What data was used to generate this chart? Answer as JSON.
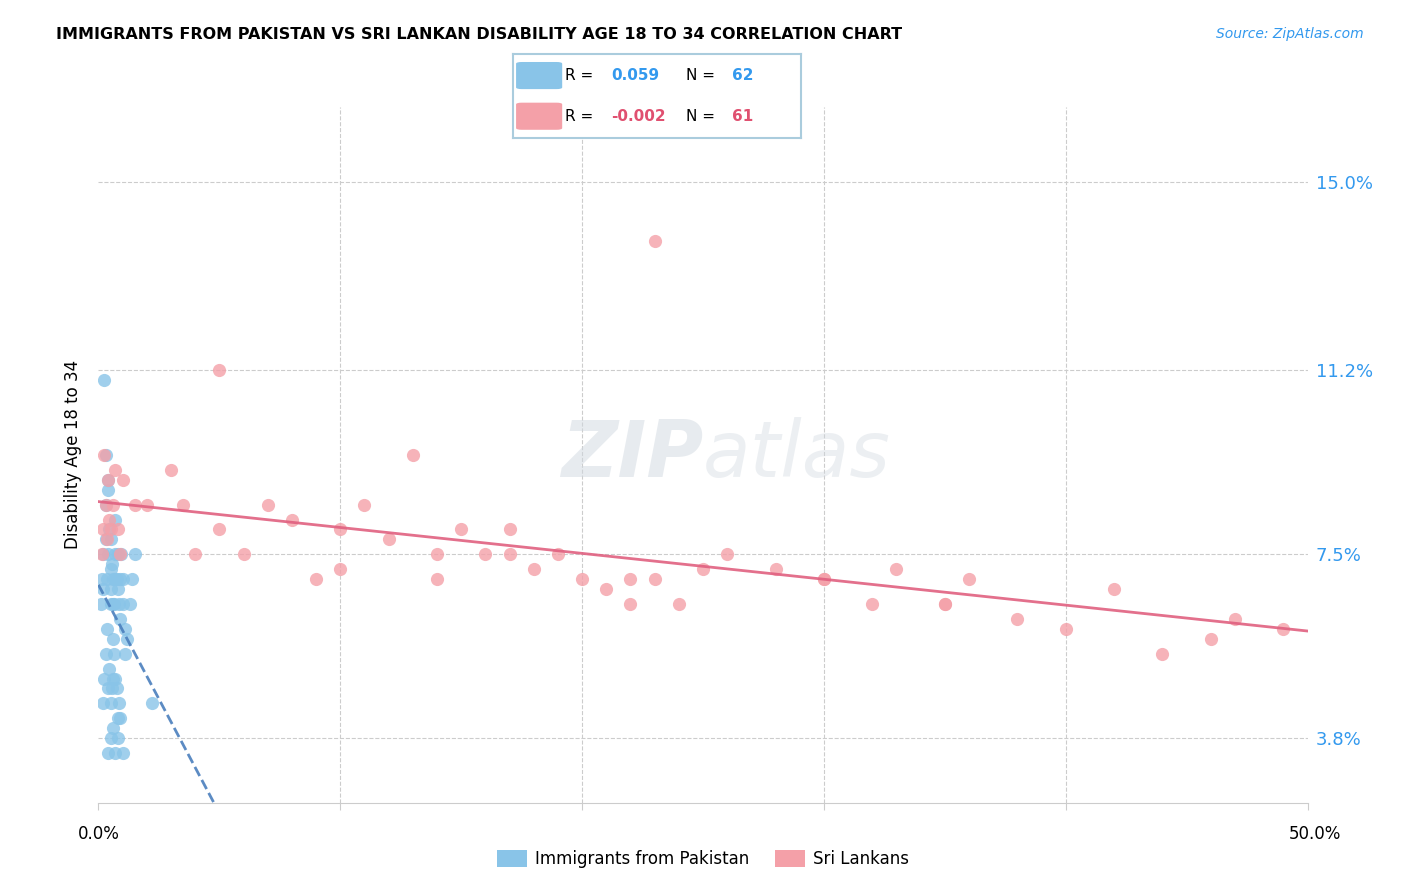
{
  "title": "IMMIGRANTS FROM PAKISTAN VS SRI LANKAN DISABILITY AGE 18 TO 34 CORRELATION CHART",
  "source": "Source: ZipAtlas.com",
  "ylabel": "Disability Age 18 to 34",
  "ytick_labels": [
    "3.8%",
    "7.5%",
    "11.2%",
    "15.0%"
  ],
  "ytick_values": [
    3.8,
    7.5,
    11.2,
    15.0
  ],
  "xlim": [
    0.0,
    50.0
  ],
  "ylim": [
    2.5,
    16.5
  ],
  "blue_color": "#89C4E8",
  "pink_color": "#F4A0A8",
  "blue_line_color": "#4A7FBD",
  "pink_line_color": "#E06080",
  "watermark": "ZIPatlas",
  "background_color": "#ffffff",
  "pakistan_x": [
    0.1,
    0.15,
    0.2,
    0.2,
    0.25,
    0.3,
    0.3,
    0.3,
    0.35,
    0.4,
    0.4,
    0.4,
    0.45,
    0.5,
    0.5,
    0.5,
    0.5,
    0.55,
    0.6,
    0.6,
    0.6,
    0.65,
    0.7,
    0.7,
    0.7,
    0.75,
    0.8,
    0.8,
    0.85,
    0.9,
    0.9,
    0.95,
    1.0,
    1.0,
    1.1,
    1.1,
    1.2,
    1.3,
    1.4,
    1.5,
    0.2,
    0.25,
    0.3,
    0.35,
    0.4,
    0.45,
    0.5,
    0.55,
    0.6,
    0.65,
    0.7,
    0.75,
    0.8,
    0.85,
    2.2,
    0.4,
    0.5,
    0.6,
    0.7,
    0.8,
    0.9,
    1.0
  ],
  "pakistan_y": [
    6.5,
    7.0,
    6.8,
    7.5,
    11.0,
    9.5,
    7.8,
    8.5,
    7.0,
    7.5,
    8.8,
    9.0,
    8.0,
    7.2,
    7.8,
    6.5,
    6.8,
    7.3,
    7.0,
    6.5,
    5.8,
    6.5,
    7.0,
    8.2,
    7.5,
    7.0,
    6.8,
    7.5,
    6.5,
    6.2,
    7.0,
    7.5,
    6.5,
    7.0,
    5.5,
    6.0,
    5.8,
    6.5,
    7.0,
    7.5,
    4.5,
    5.0,
    5.5,
    6.0,
    4.8,
    5.2,
    4.5,
    4.8,
    5.0,
    5.5,
    5.0,
    4.8,
    4.2,
    4.5,
    4.5,
    3.5,
    3.8,
    4.0,
    3.5,
    3.8,
    4.2,
    3.5
  ],
  "srilanka_x": [
    0.15,
    0.2,
    0.25,
    0.3,
    0.35,
    0.4,
    0.45,
    0.5,
    0.6,
    0.7,
    0.8,
    0.9,
    1.0,
    1.5,
    2.0,
    3.0,
    4.0,
    5.0,
    6.0,
    7.0,
    8.0,
    9.0,
    10.0,
    11.0,
    12.0,
    13.0,
    14.0,
    15.0,
    16.0,
    17.0,
    18.0,
    19.0,
    20.0,
    21.0,
    22.0,
    23.0,
    24.0,
    25.0,
    26.0,
    28.0,
    30.0,
    32.0,
    33.0,
    35.0,
    36.0,
    38.0,
    40.0,
    42.0,
    44.0,
    46.0,
    47.0,
    49.0,
    23.0,
    5.0,
    17.0,
    30.0,
    10.0,
    3.5,
    22.0,
    35.0,
    14.0
  ],
  "srilanka_y": [
    7.5,
    8.0,
    9.5,
    8.5,
    7.8,
    9.0,
    8.2,
    8.0,
    8.5,
    9.2,
    8.0,
    7.5,
    9.0,
    8.5,
    8.5,
    9.2,
    7.5,
    8.0,
    7.5,
    8.5,
    8.2,
    7.0,
    8.0,
    8.5,
    7.8,
    9.5,
    7.5,
    8.0,
    7.5,
    8.0,
    7.2,
    7.5,
    7.0,
    6.8,
    6.5,
    7.0,
    6.5,
    7.2,
    7.5,
    7.2,
    7.0,
    6.5,
    7.2,
    6.5,
    7.0,
    6.2,
    6.0,
    6.8,
    5.5,
    5.8,
    6.2,
    6.0,
    13.8,
    11.2,
    7.5,
    7.0,
    7.2,
    8.5,
    7.0,
    6.5,
    7.0
  ]
}
